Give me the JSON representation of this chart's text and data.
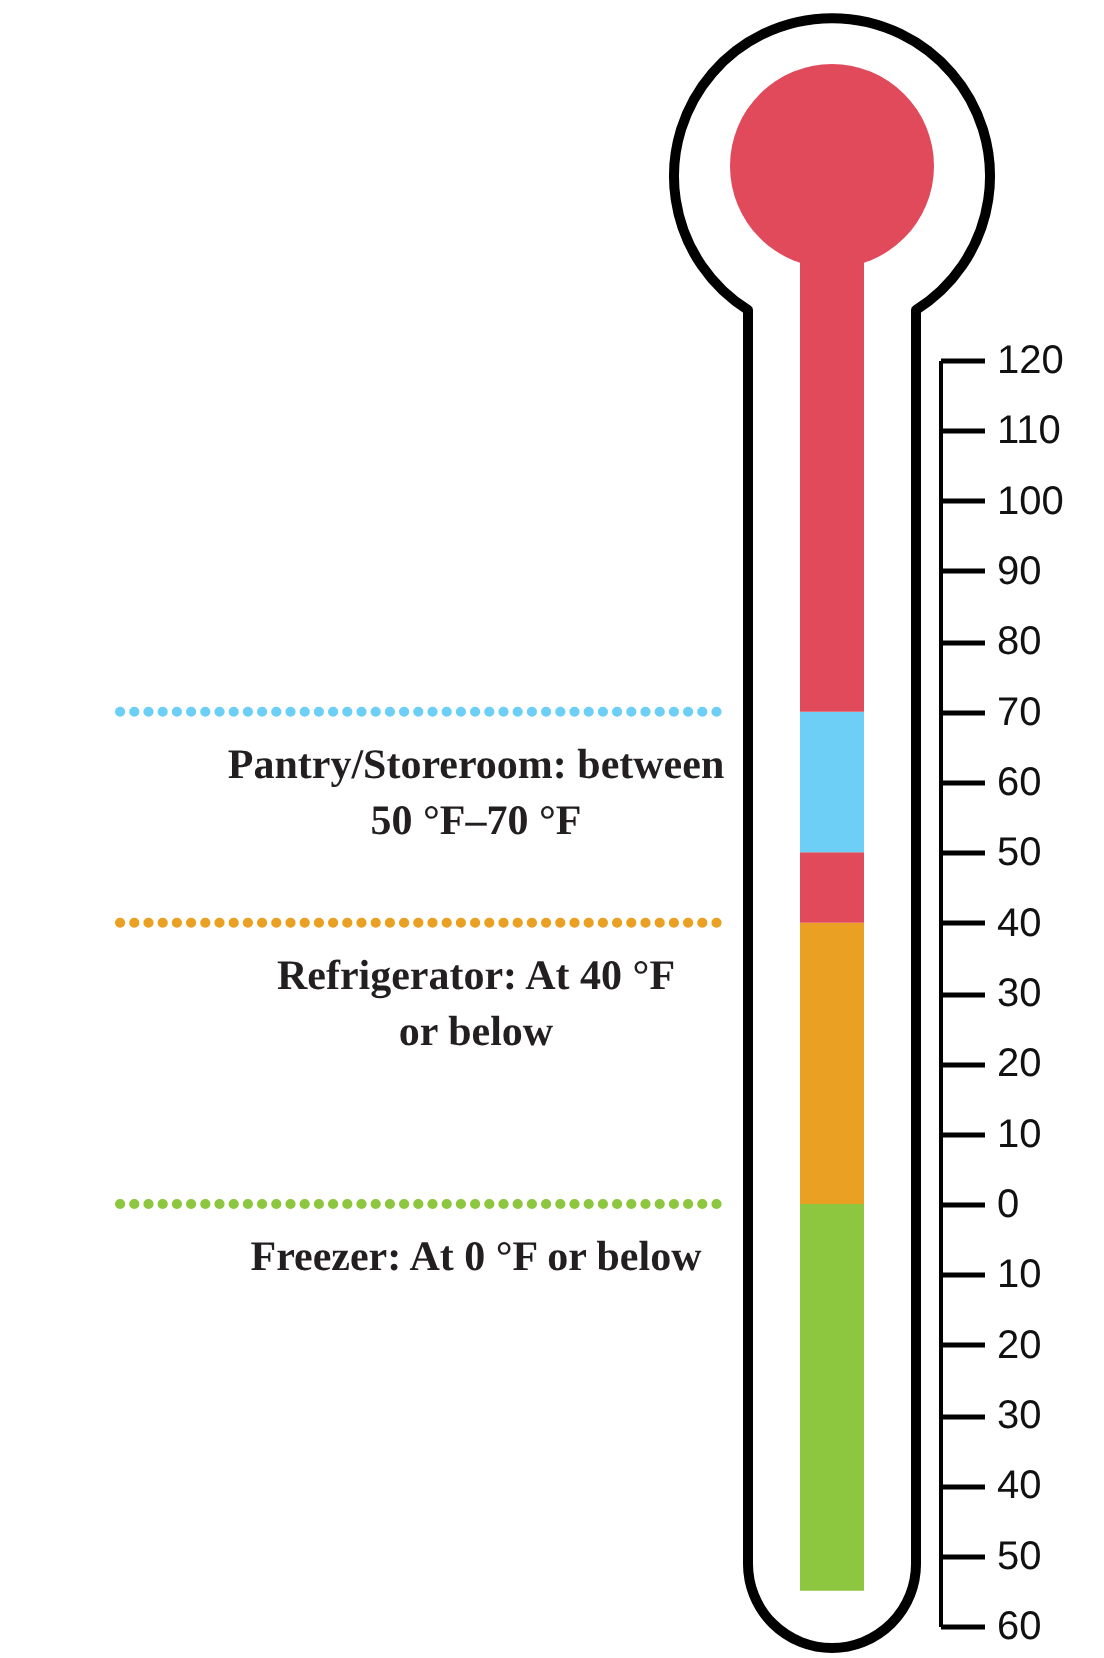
{
  "chart_data": {
    "type": "bar",
    "stacked": true,
    "categories": [
      null
    ],
    "series": [
      {
        "name": "Freezer: At 0 °F or below",
        "color": "#8dc63f",
        "values": [
          -55
        ]
      },
      {
        "name": "Refrigerator: At 40 °F\nor below",
        "color": "#e9a023",
        "values": [
          40
        ]
      },
      {
        "color": "#e04a5a",
        "values": [
          10
        ]
      },
      {
        "name": "Pantry/Storeroom: between\n50 °F–70 °F",
        "color": "#6dcff6",
        "values": [
          20
        ]
      },
      {
        "color": "#e04a5a",
        "values": [
          50
        ]
      }
    ],
    "ylim": [
      -60,
      120
    ],
    "yticks": [
      {
        "value": -60,
        "label": "60"
      },
      {
        "value": -50,
        "label": "50"
      },
      {
        "value": -40,
        "label": "40"
      },
      {
        "value": -30,
        "label": "30"
      },
      {
        "value": -20,
        "label": "20"
      },
      {
        "value": -10,
        "label": "10"
      },
      0,
      10,
      20,
      30,
      40,
      50,
      60,
      70,
      80,
      90,
      100,
      110,
      120
    ],
    "tick_labels": "y",
    "grid": false,
    "legend": false
  }
}
